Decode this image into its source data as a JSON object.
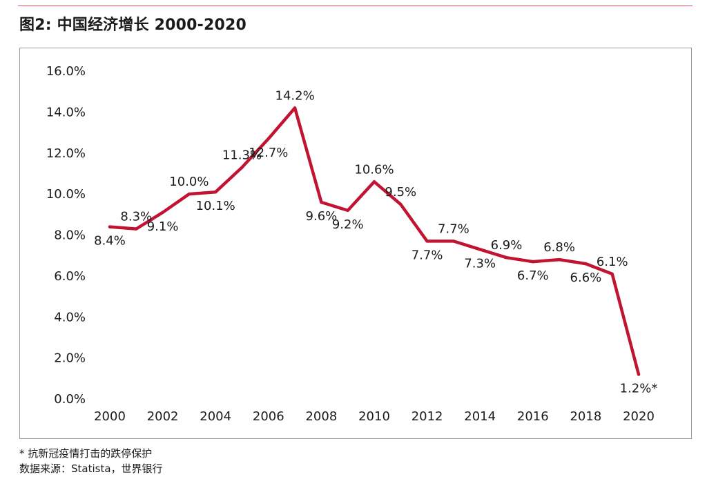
{
  "figure": {
    "title": "图2: 中国经济增长 2000-2020",
    "accent_color": "#c01432",
    "rule_color": "#e0485a"
  },
  "footnotes": {
    "note": "* 抗新冠疫情打击的跌停保护",
    "source": "数据来源：Statista，世界银行"
  },
  "chart_data": {
    "type": "line",
    "title": "图2: 中国经济增长 2000-2020",
    "xlabel": "",
    "ylabel": "",
    "x": [
      2000,
      2001,
      2002,
      2003,
      2004,
      2005,
      2006,
      2007,
      2008,
      2009,
      2010,
      2011,
      2012,
      2013,
      2014,
      2015,
      2016,
      2017,
      2018,
      2019,
      2020
    ],
    "series": [
      {
        "values": [
          8.4,
          8.3,
          9.1,
          10.0,
          10.1,
          11.3,
          12.7,
          14.2,
          9.6,
          9.2,
          10.6,
          9.5,
          7.7,
          7.7,
          7.3,
          6.9,
          6.7,
          6.8,
          6.6,
          6.1,
          1.2
        ],
        "labels": [
          "8.4%",
          "8.3%",
          "9.1%",
          "10.0%",
          "10.1%",
          "11.3%",
          "12.7%",
          "14.2%",
          "9.6%",
          "9.2%",
          "10.6%",
          "9.5%",
          "7.7%",
          "7.7%",
          "7.3%",
          "6.9%",
          "6.7%",
          "6.8%",
          "6.6%",
          "6.1%",
          "1.2%*"
        ],
        "label_side": [
          "below",
          "above",
          "below",
          "above",
          "below",
          "above",
          "below",
          "above",
          "below",
          "below",
          "above",
          "above",
          "below",
          "above",
          "below",
          "above",
          "below",
          "above",
          "below",
          "above",
          "below"
        ],
        "color": "#c01432"
      }
    ],
    "x_ticks": [
      "2000",
      "2002",
      "2004",
      "2006",
      "2008",
      "2010",
      "2012",
      "2014",
      "2016",
      "2018",
      "2020"
    ],
    "y_ticks": [
      "0.0%",
      "2.0%",
      "4.0%",
      "6.0%",
      "8.0%",
      "10.0%",
      "12.0%",
      "14.0%",
      "16.0%"
    ],
    "xlim": [
      2000,
      2020
    ],
    "ylim": [
      0,
      16
    ],
    "grid": false,
    "legend": "none"
  }
}
